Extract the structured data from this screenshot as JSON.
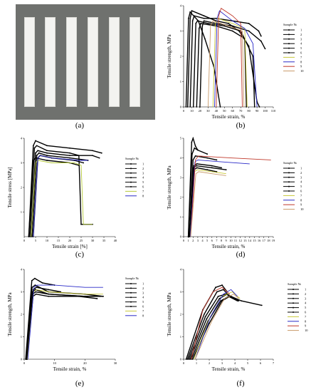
{
  "captions": [
    "(a)",
    "(b)",
    "(c)",
    "(d)",
    "(e)",
    "(f)"
  ],
  "photo": {
    "strip_count": 6,
    "background": "#6f716e",
    "strip_color": "#f3f3f0"
  },
  "legend_header": {
    "b": "Sample №",
    "c": "Sample №",
    "d": "Sample №",
    "e": "Sample №",
    "f": "Sample №"
  },
  "chart_data": [
    {
      "panel": "b",
      "type": "line",
      "xlabel": "Tensile strain, %",
      "ylabel": "Tensile strength, MPa",
      "xlim": [
        0,
        110
      ],
      "ylim": [
        0,
        4
      ],
      "xticks": [
        "0",
        "10",
        "20",
        "30",
        "40",
        "50",
        "60",
        "70",
        "80",
        "90",
        "100",
        "110"
      ],
      "yticks": [
        "0",
        "1",
        "2",
        "3",
        "4"
      ],
      "legend_position": "right",
      "series": [
        {
          "name": "1",
          "color": "#000000",
          "x": [
            3,
            6,
            8,
            18,
            26,
            37,
            45
          ],
          "y": [
            0,
            3.5,
            3.75,
            3.4,
            2.7,
            1.6,
            0
          ]
        },
        {
          "name": "2",
          "color": "#000000",
          "x": [
            5,
            8,
            10,
            25,
            40,
            55,
            68,
            80,
            90,
            93
          ],
          "y": [
            0,
            3.5,
            3.8,
            3.6,
            3.4,
            3.3,
            3.0,
            2.4,
            0.2,
            0
          ]
        },
        {
          "name": "3",
          "color": "#000000",
          "x": [
            8,
            11,
            13,
            25,
            40,
            60,
            80,
            92,
            95
          ],
          "y": [
            0,
            3.4,
            3.6,
            3.5,
            3.5,
            3.4,
            3.3,
            3.0,
            2.8
          ]
        },
        {
          "name": "4",
          "color": "#000000",
          "x": [
            12,
            15,
            17,
            30,
            50,
            70,
            85,
            87
          ],
          "y": [
            0,
            3.3,
            3.4,
            3.3,
            3.2,
            3.0,
            2.0,
            0
          ]
        },
        {
          "name": "5",
          "color": "#000000",
          "x": [
            16,
            19,
            21,
            40,
            60,
            75,
            77
          ],
          "y": [
            0,
            3.1,
            3.3,
            3.2,
            3.0,
            2.7,
            0
          ]
        },
        {
          "name": "6",
          "color": "#000000",
          "x": [
            20,
            23,
            25,
            40,
            60,
            80,
            95,
            100
          ],
          "y": [
            0,
            3.2,
            3.4,
            3.3,
            3.2,
            3.0,
            2.6,
            2.3
          ]
        },
        {
          "name": "7",
          "color": "#c9c93a",
          "x": [
            36,
            39,
            42,
            60,
            75,
            78
          ],
          "y": [
            0,
            3.3,
            3.5,
            3.3,
            3.1,
            0
          ]
        },
        {
          "name": "8",
          "color": "#2a2ac8",
          "x": [
            38,
            41,
            44,
            60,
            75,
            85,
            90
          ],
          "y": [
            0,
            3.5,
            3.8,
            3.4,
            3.1,
            2.5,
            0
          ]
        },
        {
          "name": "9",
          "color": "#c0392b",
          "x": [
            40,
            43,
            46,
            60,
            70,
            72
          ],
          "y": [
            0,
            3.6,
            3.9,
            3.6,
            3.3,
            0
          ]
        },
        {
          "name": "10",
          "color": "#c89a6a",
          "x": [
            30,
            33,
            36,
            55,
            72,
            74
          ],
          "y": [
            0,
            3.2,
            3.4,
            3.2,
            3.0,
            0
          ]
        }
      ]
    },
    {
      "panel": "c",
      "type": "line",
      "xlabel": "Tensile strain [%]",
      "ylabel": "Tensile stress  [MPa]",
      "xlim": [
        0,
        40
      ],
      "ylim": [
        0,
        4
      ],
      "xticks": [
        "0",
        "5",
        "10",
        "15",
        "20",
        "25",
        "30",
        "35",
        "40"
      ],
      "yticks": [
        "1",
        "2",
        "3",
        "4"
      ],
      "legend_position": "right",
      "series": [
        {
          "name": "1",
          "color": "#000000",
          "x": [
            2,
            4,
            5,
            10,
            20,
            30,
            34
          ],
          "y": [
            0,
            3.7,
            3.9,
            3.7,
            3.6,
            3.5,
            3.4
          ]
        },
        {
          "name": "2",
          "color": "#000000",
          "x": [
            2.5,
            4.5,
            5.5,
            10,
            20,
            24,
            25,
            30
          ],
          "y": [
            0,
            3.6,
            3.7,
            3.5,
            3.4,
            3.3,
            0.5,
            0.5
          ]
        },
        {
          "name": "3",
          "color": "#000000",
          "x": [
            3,
            5,
            6,
            10,
            20,
            30,
            33
          ],
          "y": [
            0,
            3.4,
            3.5,
            3.4,
            3.3,
            3.3,
            3.2
          ]
        },
        {
          "name": "4",
          "color": "#000000",
          "x": [
            3.5,
            5.5,
            6.5,
            10,
            20,
            28
          ],
          "y": [
            0,
            3.3,
            3.4,
            3.3,
            3.2,
            3.1
          ]
        },
        {
          "name": "5",
          "color": "#000000",
          "x": [
            4,
            6,
            7,
            12,
            22,
            26
          ],
          "y": [
            0,
            3.2,
            3.3,
            3.2,
            3.1,
            3.0
          ]
        },
        {
          "name": "6",
          "color": "#000000",
          "x": [
            2,
            4,
            5,
            10,
            20,
            24
          ],
          "y": [
            0,
            3.1,
            3.2,
            3.1,
            3.0,
            2.9
          ]
        },
        {
          "name": "7",
          "color": "#b5c93a",
          "x": [
            3,
            5,
            6,
            12,
            22,
            25,
            26,
            30
          ],
          "y": [
            0,
            3.0,
            3.1,
            3.0,
            3.0,
            2.9,
            0.5,
            0.5
          ]
        },
        {
          "name": "8",
          "color": "#2a2ac8",
          "x": [
            4,
            6,
            7,
            12,
            24,
            28
          ],
          "y": [
            0,
            3.2,
            3.3,
            3.2,
            3.1,
            3.1
          ]
        }
      ]
    },
    {
      "panel": "d",
      "type": "line",
      "xlabel": "Tensile strain, %",
      "ylabel": "Tensile strength, MPa",
      "xlim": [
        0,
        19
      ],
      "ylim": [
        0,
        5
      ],
      "xticks": [
        "0",
        "1",
        "2",
        "3",
        "4",
        "5",
        "6",
        "7",
        "8",
        "9",
        "10",
        "11",
        "12",
        "13",
        "14",
        "15",
        "16",
        "17",
        "18",
        "19"
      ],
      "yticks": [
        "0",
        "1",
        "2",
        "3",
        "4",
        "5"
      ],
      "legend_position": "right",
      "series": [
        {
          "name": "1",
          "color": "#000000",
          "x": [
            1,
            1.7,
            2,
            2.5,
            3
          ],
          "y": [
            0,
            4.8,
            5.0,
            4.6,
            4.4
          ]
        },
        {
          "name": "2",
          "color": "#000000",
          "x": [
            1,
            1.8,
            2.3,
            3,
            5
          ],
          "y": [
            0,
            4.2,
            4.5,
            4.4,
            4.2
          ]
        },
        {
          "name": "3",
          "color": "#000000",
          "x": [
            1.2,
            2,
            2.5,
            5,
            7
          ],
          "y": [
            0,
            3.9,
            4.1,
            4.0,
            3.9
          ]
        },
        {
          "name": "4",
          "color": "#000000",
          "x": [
            1.2,
            2.1,
            2.7,
            6,
            9
          ],
          "y": [
            0,
            3.5,
            3.6,
            3.5,
            3.4
          ]
        },
        {
          "name": "5",
          "color": "#000000",
          "x": [
            1.3,
            2.2,
            2.8,
            6,
            8
          ],
          "y": [
            0,
            3.6,
            3.7,
            3.6,
            3.5
          ]
        },
        {
          "name": "6",
          "color": "#000000",
          "x": [
            1.3,
            2.2,
            2.8,
            5,
            7
          ],
          "y": [
            0,
            3.4,
            3.5,
            3.4,
            3.3
          ]
        },
        {
          "name": "7",
          "color": "#c9c93a",
          "x": [
            1.4,
            2.3,
            2.9,
            6,
            9
          ],
          "y": [
            0,
            3.3,
            3.4,
            3.3,
            3.2
          ]
        },
        {
          "name": "8",
          "color": "#2a2ac8",
          "x": [
            1.4,
            2.4,
            3,
            8,
            14
          ],
          "y": [
            0,
            3.8,
            3.9,
            3.8,
            3.7
          ]
        },
        {
          "name": "9",
          "color": "#c0392b",
          "x": [
            1.5,
            2.5,
            3.1,
            10,
            18.5
          ],
          "y": [
            0,
            3.9,
            4.1,
            4.0,
            3.9
          ]
        },
        {
          "name": "10",
          "color": "#c89a6a",
          "x": [
            1.5,
            2.6,
            3.2,
            6,
            9
          ],
          "y": [
            0,
            3.2,
            3.3,
            3.2,
            3.1
          ]
        }
      ]
    },
    {
      "panel": "e",
      "type": "line",
      "xlabel": "Tensile strain, %",
      "ylabel": "Tensile strength, MPa",
      "xlim": [
        0,
        30
      ],
      "ylim": [
        0,
        4
      ],
      "xticks": [
        "0",
        "10",
        "20",
        "30"
      ],
      "yticks": [
        "0",
        "1",
        "2",
        "3",
        "4"
      ],
      "legend_position": "right",
      "series": [
        {
          "name": "1",
          "color": "#000000",
          "x": [
            0.5,
            2.5,
            3.5,
            6,
            10
          ],
          "y": [
            0,
            3.5,
            3.6,
            3.4,
            3.3
          ]
        },
        {
          "name": "2",
          "color": "#000000",
          "x": [
            0.6,
            2.6,
            3.6,
            8,
            20,
            26
          ],
          "y": [
            0,
            3.2,
            3.3,
            3.0,
            2.9,
            2.8
          ]
        },
        {
          "name": "3",
          "color": "#000000",
          "x": [
            0.7,
            2.7,
            3.7,
            8,
            20,
            26
          ],
          "y": [
            0,
            3.0,
            3.1,
            2.9,
            2.8,
            2.8
          ]
        },
        {
          "name": "4",
          "color": "#000000",
          "x": [
            0.8,
            2.8,
            3.8,
            8,
            20,
            25
          ],
          "y": [
            0,
            2.9,
            3.0,
            2.9,
            2.8,
            2.8
          ]
        },
        {
          "name": "5",
          "color": "#000000",
          "x": [
            0.9,
            2.9,
            3.9,
            8,
            18,
            24
          ],
          "y": [
            0,
            2.8,
            2.9,
            2.8,
            2.8,
            2.7
          ]
        },
        {
          "name": "6",
          "color": "#000000",
          "x": [
            1.0,
            3.0,
            4.0,
            8,
            12
          ],
          "y": [
            0,
            3.1,
            3.2,
            3.1,
            3.0
          ]
        },
        {
          "name": "7",
          "color": "#c9c93a",
          "x": [
            1.1,
            3.1,
            4.1,
            8,
            20,
            26
          ],
          "y": [
            0,
            3.0,
            3.1,
            3.0,
            2.9,
            2.9
          ]
        },
        {
          "name": "8",
          "color": "#2a2ac8",
          "x": [
            1.2,
            3.2,
            4.2,
            10,
            20,
            26
          ],
          "y": [
            0,
            3.2,
            3.3,
            3.3,
            3.2,
            3.2
          ]
        }
      ]
    },
    {
      "panel": "f",
      "type": "line",
      "xlabel": "Tensile strain, %",
      "ylabel": "Tensile strength, MPa",
      "xlim": [
        0,
        7
      ],
      "ylim": [
        0,
        4
      ],
      "xticks": [
        "0",
        "1",
        "2",
        "3",
        "4",
        "5",
        "6",
        "7"
      ],
      "yticks": [
        "0",
        "1",
        "2",
        "3",
        "4"
      ],
      "legend_position": "right",
      "series": [
        {
          "name": "1",
          "color": "#000000",
          "x": [
            0.2,
            1.5,
            2.5,
            3.0,
            3.4
          ],
          "y": [
            0,
            2.2,
            3.2,
            3.3,
            3.0
          ]
        },
        {
          "name": "2",
          "color": "#000000",
          "x": [
            0.3,
            1.6,
            2.6,
            3.1,
            3.6
          ],
          "y": [
            0,
            2.0,
            3.0,
            3.1,
            2.8
          ]
        },
        {
          "name": "3",
          "color": "#000000",
          "x": [
            0.4,
            1.7,
            2.7,
            3.3,
            4.5,
            6.1
          ],
          "y": [
            0,
            1.9,
            2.8,
            2.9,
            2.6,
            2.4
          ]
        },
        {
          "name": "4",
          "color": "#000000",
          "x": [
            0.5,
            1.8,
            2.8,
            3.4,
            4.0
          ],
          "y": [
            0,
            1.8,
            2.7,
            2.9,
            2.7
          ]
        },
        {
          "name": "5",
          "color": "#000000",
          "x": [
            0.6,
            1.9,
            2.9,
            3.5,
            4.2
          ],
          "y": [
            0,
            1.7,
            2.6,
            2.8,
            2.6
          ]
        },
        {
          "name": "6",
          "color": "#000000",
          "x": [
            0.7,
            2.0,
            3.0,
            3.6,
            4.3
          ],
          "y": [
            0,
            1.6,
            2.6,
            2.8,
            2.6
          ]
        },
        {
          "name": "7",
          "color": "#c9c93a",
          "x": [
            0.8,
            2.0,
            3.0,
            3.8,
            4.4
          ],
          "y": [
            0,
            1.8,
            2.8,
            3.0,
            2.7
          ]
        },
        {
          "name": "8",
          "color": "#2a2ac8",
          "x": [
            0.9,
            2.1,
            3.1,
            3.7,
            4.2
          ],
          "y": [
            0,
            1.9,
            2.9,
            3.1,
            2.8
          ]
        },
        {
          "name": "9",
          "color": "#c0392b",
          "x": [
            0.6,
            1.5,
            2.3,
            3.0,
            3.6
          ],
          "y": [
            0,
            2.2,
            3.0,
            3.2,
            2.9
          ]
        },
        {
          "name": "10",
          "color": "#c89a6a",
          "x": [
            0.9,
            2.2,
            3.2,
            3.9,
            4.3
          ],
          "y": [
            0,
            1.7,
            2.7,
            2.9,
            2.7
          ]
        }
      ]
    }
  ]
}
